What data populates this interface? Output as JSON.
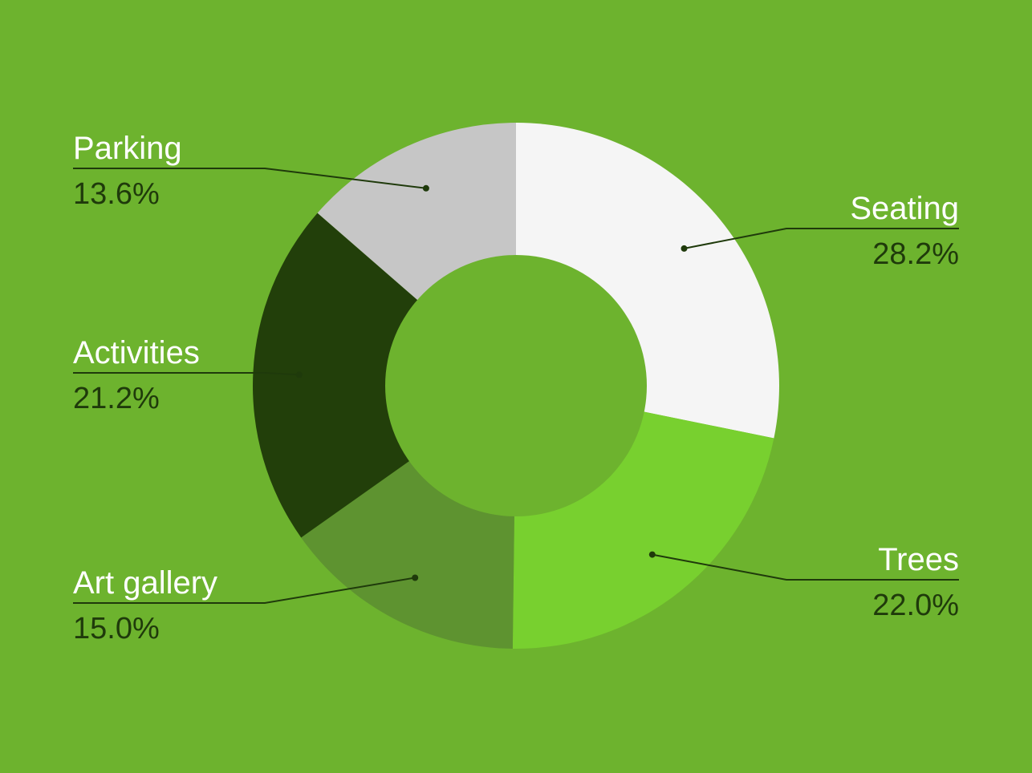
{
  "colors": {
    "background": "#6db32e",
    "hole": "#6db32e",
    "name_text": "#ffffff",
    "pct_text": "#1f3a0b",
    "leader": "#1f3a0b"
  },
  "chart_data": {
    "type": "pie",
    "donut": true,
    "title": "",
    "legend": "none",
    "slices": [
      {
        "label": "Seating",
        "value": 28.2,
        "value_label": "28.2%",
        "color": "#f5f5f5",
        "label_side": "right"
      },
      {
        "label": "Trees",
        "value": 22.0,
        "value_label": "22.0%",
        "color": "#78d02f",
        "label_side": "right"
      },
      {
        "label": "Art gallery",
        "value": 15.0,
        "value_label": "15.0%",
        "color": "#5e9330",
        "label_side": "left"
      },
      {
        "label": "Activities",
        "value": 21.2,
        "value_label": "21.2%",
        "color": "#223f0a",
        "label_side": "left"
      },
      {
        "label": "Parking",
        "value": 13.6,
        "value_label": "13.6%",
        "color": "#c6c6c6",
        "label_side": "left"
      }
    ]
  }
}
